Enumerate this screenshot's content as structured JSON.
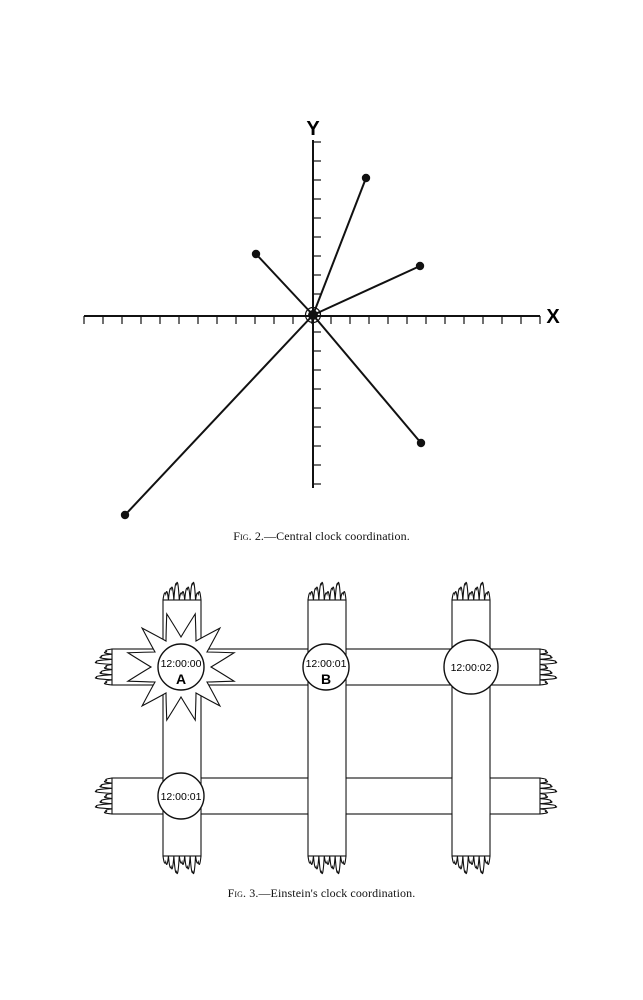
{
  "fig2": {
    "y_axis_label": "Y",
    "x_axis_label": "X",
    "caption_prefix": "Fig. 2.",
    "caption_text": "—Central clock coordination.",
    "endpoints": [
      {
        "name": "point-upper-right-steep"
      },
      {
        "name": "point-upper-left"
      },
      {
        "name": "point-right-shallow"
      },
      {
        "name": "point-lower-right"
      },
      {
        "name": "point-lower-left"
      }
    ]
  },
  "fig3": {
    "caption_prefix": "Fig. 3.",
    "caption_text": "—Einstein's clock coordination.",
    "clocks": [
      {
        "time": "12:00:00",
        "label": "A",
        "flash": true
      },
      {
        "time": "12:00:01",
        "label": "B",
        "flash": false
      },
      {
        "time": "12:00:02",
        "label": "",
        "flash": false
      },
      {
        "time": "12:00:01",
        "label": "",
        "flash": false
      }
    ]
  },
  "colors": {
    "ink": "#111111",
    "paper": "#ffffff"
  }
}
